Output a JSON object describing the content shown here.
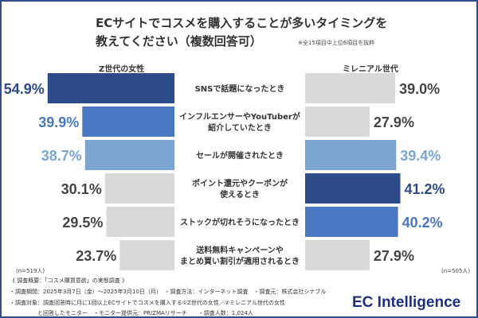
{
  "title_line1": "ECサイトでコスメを購入することが多いタイミングを",
  "title_line2": "教えてください（複数回答可）",
  "note": "※全15項目中上位6項目を抜粋",
  "chart_data": {
    "type": "bar",
    "orientation": "horizontal-butterfly",
    "categories": [
      "SNSで話題になったとき",
      "インフルエンサーやYouTuberが\n紹介していたとき",
      "セールが開催されたとき",
      "ポイント還元やクーポンが\n使えるとき",
      "ストックが切れそうになったとき",
      "送料無料キャンペーンや\nまとめ買い割引が適用されるとき"
    ],
    "series": [
      {
        "name": "Z世代の女性",
        "values": [
          54.9,
          39.9,
          38.7,
          30.1,
          29.5,
          23.7
        ],
        "labels": [
          "54.9%",
          "39.9%",
          "38.7%",
          "30.1%",
          "29.5%",
          "23.7%"
        ],
        "colors": [
          "#2d4b8a",
          "#4a78c2",
          "#7ba6d1",
          "#d9d9d9",
          "#d9d9d9",
          "#d9d9d9"
        ],
        "n": "(n=519人)"
      },
      {
        "name": "ミレニアル世代",
        "values": [
          39.0,
          27.9,
          39.4,
          41.2,
          40.2,
          27.9
        ],
        "labels": [
          "39.0%",
          "27.9%",
          "39.4%",
          "41.2%",
          "40.2%",
          "27.9%"
        ],
        "colors": [
          "#d9d9d9",
          "#d9d9d9",
          "#7ba6d1",
          "#2d4b8a",
          "#4a78c2",
          "#d9d9d9"
        ],
        "n": "(n=505人)"
      }
    ],
    "unit": "%"
  },
  "footer": {
    "line1": "《 調査概要：「コスメ購買意欲」の実態調査 》",
    "line2": "・調査期間：2025年3月7日（金）～2025年3月10日（月）　・調査方法：インターネット調査　・調査元：株式会社シナブル",
    "line3": "・調査対象：調査回答時に月に1回以上ECサイトでコスメを購入する①Z世代の女性／②ミレニアル世代の女性",
    "line4": "　　　　　と回答したモニター　・モニター提供元：PRIZMAリサーチ　　・調査人数：1,024人"
  },
  "logo": "EC Intelligence"
}
